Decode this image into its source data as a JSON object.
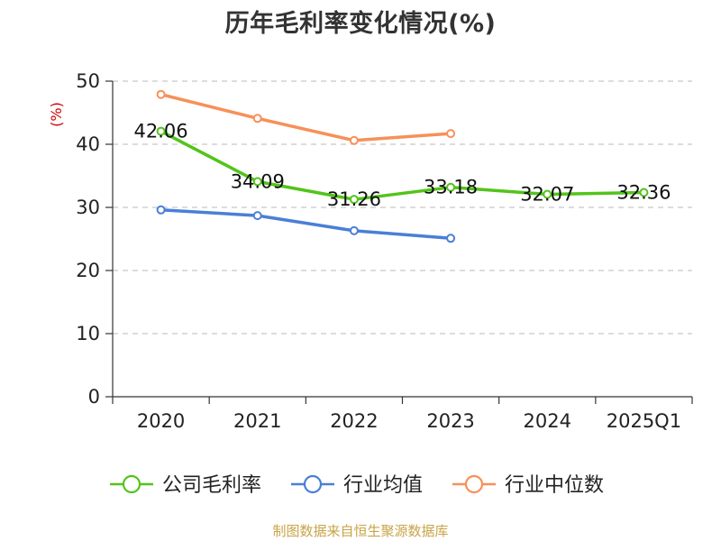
{
  "title": "历年毛利率变化情况(%)",
  "source": "制图数据来自恒生聚源数据库",
  "chart_data": {
    "type": "line",
    "title": "历年毛利率变化情况(%)",
    "y_unit": "(%)",
    "categories": [
      "2020",
      "2021",
      "2022",
      "2023",
      "2024",
      "2025Q1"
    ],
    "ylim": [
      0,
      50
    ],
    "yticks": [
      0,
      10,
      20,
      30,
      40,
      50
    ],
    "grid": true,
    "legend_position": "bottom",
    "series": [
      {
        "name": "公司毛利率",
        "color": "#52c41a",
        "values": [
          42.06,
          34.09,
          31.26,
          33.18,
          32.07,
          32.36
        ],
        "labels": [
          "42.06",
          "34.09",
          "31.26",
          "33.18",
          "32.07",
          "32.36"
        ],
        "show_labels": true
      },
      {
        "name": "行业均值",
        "color": "#4a7fd6",
        "values": [
          29.6,
          28.7,
          26.3,
          25.1,
          null,
          null
        ],
        "show_labels": false
      },
      {
        "name": "行业中位数",
        "color": "#f79058",
        "values": [
          47.9,
          44.1,
          40.6,
          41.7,
          null,
          null
        ],
        "show_labels": false
      }
    ]
  }
}
